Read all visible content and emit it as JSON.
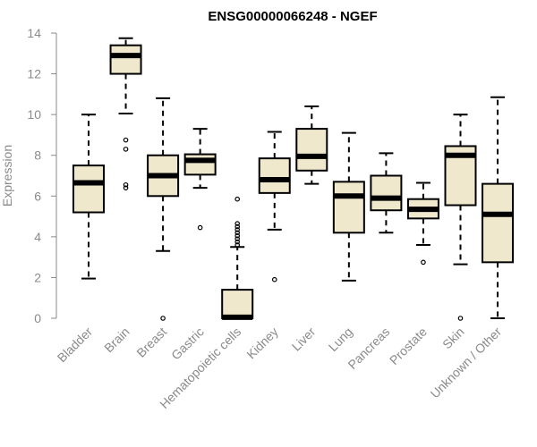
{
  "chart_data": {
    "type": "boxplot",
    "title": "ENSG00000066248 - NGEF",
    "xlabel": "",
    "ylabel": "Expression",
    "ylim": [
      0,
      14
    ],
    "yticks": [
      0,
      2,
      4,
      6,
      8,
      10,
      12,
      14
    ],
    "box_fill": "#efe8cc",
    "categories": [
      "Bladder",
      "Brain",
      "Breast",
      "Gastric",
      "Hematopoietic cells",
      "Kidney",
      "Liver",
      "Lung",
      "Pancreas",
      "Prostate",
      "Skin",
      "Unknown / Other"
    ],
    "boxes": [
      {
        "category": "Bladder",
        "whisker_low": 1.95,
        "q1": 5.2,
        "median": 6.65,
        "q3": 7.5,
        "whisker_high": 10.0,
        "outliers": []
      },
      {
        "category": "Brain",
        "whisker_low": 10.05,
        "q1": 12.0,
        "median": 12.9,
        "q3": 13.4,
        "whisker_high": 13.75,
        "outliers": [
          8.75,
          8.3,
          6.55,
          6.4
        ]
      },
      {
        "category": "Breast",
        "whisker_low": 3.3,
        "q1": 6.0,
        "median": 7.0,
        "q3": 8.0,
        "whisker_high": 10.8,
        "outliers": [
          0.0
        ]
      },
      {
        "category": "Gastric",
        "whisker_low": 6.4,
        "q1": 7.05,
        "median": 7.75,
        "q3": 8.05,
        "whisker_high": 9.3,
        "outliers": [
          4.45
        ]
      },
      {
        "category": "Hematopoietic cells",
        "whisker_low": 0.0,
        "q1": 0.0,
        "median": 0.05,
        "q3": 1.4,
        "whisker_high": 3.5,
        "outliers": [
          3.6,
          3.75,
          3.9,
          4.05,
          4.2,
          4.35,
          4.5,
          4.65,
          5.85
        ]
      },
      {
        "category": "Kidney",
        "whisker_low": 4.35,
        "q1": 6.15,
        "median": 6.8,
        "q3": 7.85,
        "whisker_high": 9.15,
        "outliers": [
          1.9
        ]
      },
      {
        "category": "Liver",
        "whisker_low": 6.6,
        "q1": 7.25,
        "median": 7.95,
        "q3": 9.3,
        "whisker_high": 10.4,
        "outliers": []
      },
      {
        "category": "Lung",
        "whisker_low": 1.85,
        "q1": 4.2,
        "median": 6.0,
        "q3": 6.7,
        "whisker_high": 9.1,
        "outliers": []
      },
      {
        "category": "Pancreas",
        "whisker_low": 4.2,
        "q1": 5.3,
        "median": 5.9,
        "q3": 7.0,
        "whisker_high": 8.1,
        "outliers": []
      },
      {
        "category": "Prostate",
        "whisker_low": 3.6,
        "q1": 4.9,
        "median": 5.35,
        "q3": 5.85,
        "whisker_high": 6.65,
        "outliers": [
          2.75
        ]
      },
      {
        "category": "Skin",
        "whisker_low": 2.65,
        "q1": 5.55,
        "median": 8.0,
        "q3": 8.45,
        "whisker_high": 10.0,
        "outliers": [
          0.0
        ]
      },
      {
        "category": "Unknown / Other",
        "whisker_low": 0.0,
        "q1": 2.75,
        "median": 5.1,
        "q3": 6.6,
        "whisker_high": 10.85,
        "outliers": []
      }
    ]
  }
}
